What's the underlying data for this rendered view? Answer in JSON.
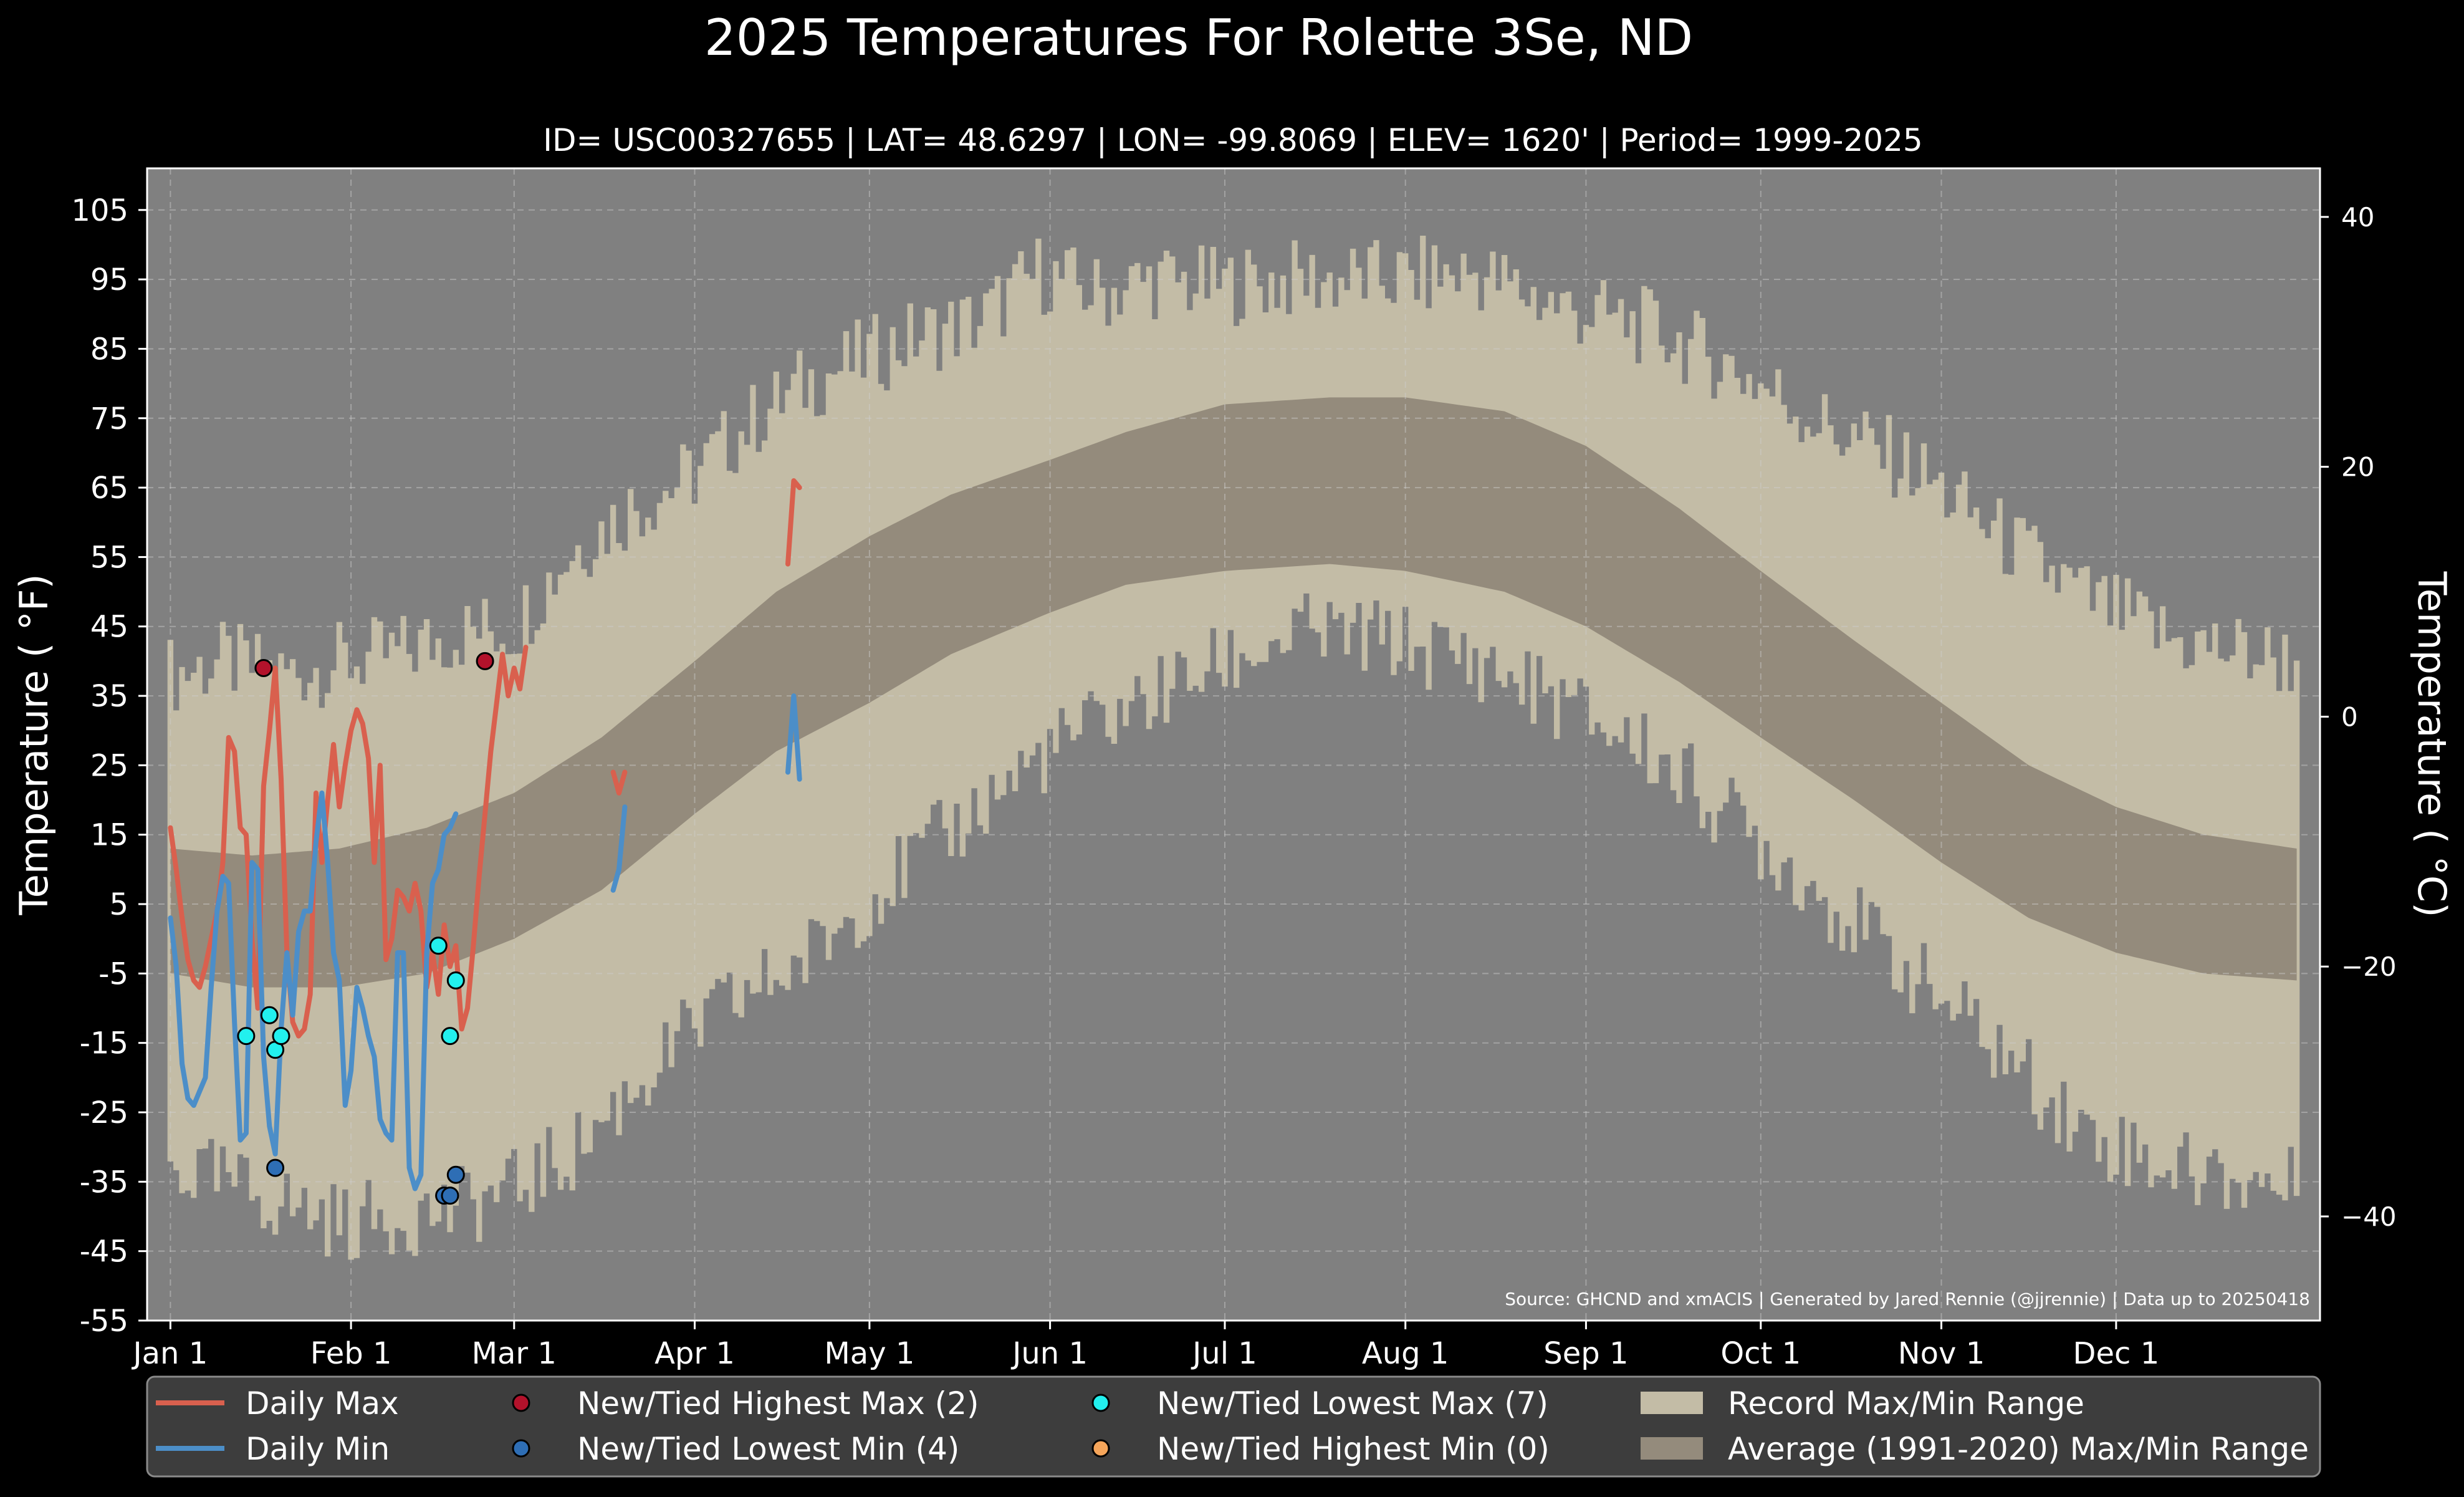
{
  "chart_data": {
    "type": "area",
    "title": "2025 Temperatures For Rolette 3Se, ND",
    "subtitle": "ID= USC00327655 | LAT= 48.6297 | LON= -99.8069 | ELEV= 1620' | Period= 1999-2025",
    "ylabel": "Temperature ( $^\\circ$F)",
    "ylabel_display": "Temperature ( °F)",
    "y2label_display": "Temperature ( °C)",
    "source": "Source: GHCND and xmACIS | Generated by Jared Rennie (@jjrennie) | Data up to 20250418",
    "ylim": [
      -55,
      111
    ],
    "y_ticks": [
      105,
      95,
      85,
      75,
      65,
      55,
      45,
      35,
      25,
      15,
      5,
      -5,
      -15,
      -25,
      -35,
      -45,
      -55
    ],
    "y_tick_labels": [
      "105",
      "95",
      "85",
      "75",
      "65",
      "55",
      "45",
      "35",
      "25",
      "15",
      "5",
      "-5",
      "-15",
      "-25",
      "-35",
      "-45",
      "-55"
    ],
    "y2_ticks": [
      40,
      20,
      0,
      -20,
      -40
    ],
    "y2_tick_labels": [
      "40",
      "20",
      "0",
      "−20",
      "−40"
    ],
    "x_ticks": [
      1,
      32,
      60,
      91,
      121,
      152,
      182,
      213,
      244,
      274,
      305,
      335
    ],
    "x_tick_labels": [
      "Jan 1",
      "Feb 1",
      "Mar 1",
      "Apr 1",
      "May 1",
      "Jun 1",
      "Jul 1",
      "Aug 1",
      "Sep 1",
      "Oct 1",
      "Nov 1",
      "Dec 1"
    ],
    "xlim": [
      -3,
      370
    ],
    "grid": true,
    "legend_position": "bottom",
    "record_range_keys": [
      {
        "day": 1,
        "max": 38,
        "min": -33
      },
      {
        "day": 10,
        "max": 40,
        "min": -35
      },
      {
        "day": 20,
        "max": 38,
        "min": -38
      },
      {
        "day": 31,
        "max": 40,
        "min": -41
      },
      {
        "day": 40,
        "max": 41,
        "min": -40
      },
      {
        "day": 50,
        "max": 44,
        "min": -39
      },
      {
        "day": 60,
        "max": 45,
        "min": -36
      },
      {
        "day": 70,
        "max": 56,
        "min": -31
      },
      {
        "day": 80,
        "max": 62,
        "min": -22
      },
      {
        "day": 91,
        "max": 67,
        "min": -13
      },
      {
        "day": 100,
        "max": 74,
        "min": -8
      },
      {
        "day": 110,
        "max": 80,
        "min": -3
      },
      {
        "day": 121,
        "max": 84,
        "min": 6
      },
      {
        "day": 130,
        "max": 87,
        "min": 12
      },
      {
        "day": 140,
        "max": 89,
        "min": 19
      },
      {
        "day": 150,
        "max": 96,
        "min": 26
      },
      {
        "day": 160,
        "max": 93,
        "min": 31
      },
      {
        "day": 170,
        "max": 95,
        "min": 35
      },
      {
        "day": 180,
        "max": 94,
        "min": 39
      },
      {
        "day": 195,
        "max": 95,
        "min": 44
      },
      {
        "day": 210,
        "max": 95,
        "min": 43
      },
      {
        "day": 225,
        "max": 96,
        "min": 40
      },
      {
        "day": 240,
        "max": 91,
        "min": 34
      },
      {
        "day": 255,
        "max": 88,
        "min": 27
      },
      {
        "day": 270,
        "max": 82,
        "min": 17
      },
      {
        "day": 285,
        "max": 74,
        "min": 6
      },
      {
        "day": 300,
        "max": 68,
        "min": -5
      },
      {
        "day": 315,
        "max": 58,
        "min": -16
      },
      {
        "day": 330,
        "max": 49,
        "min": -28
      },
      {
        "day": 345,
        "max": 43,
        "min": -33
      },
      {
        "day": 366,
        "max": 40,
        "min": -36
      }
    ],
    "average_range_keys": [
      {
        "day": 1,
        "max": 13,
        "min": -5
      },
      {
        "day": 15,
        "max": 12,
        "min": -7
      },
      {
        "day": 30,
        "max": 13,
        "min": -7
      },
      {
        "day": 45,
        "max": 16,
        "min": -5
      },
      {
        "day": 60,
        "max": 21,
        "min": 0
      },
      {
        "day": 75,
        "max": 29,
        "min": 7
      },
      {
        "day": 91,
        "max": 40,
        "min": 18
      },
      {
        "day": 105,
        "max": 50,
        "min": 27
      },
      {
        "day": 121,
        "max": 58,
        "min": 34
      },
      {
        "day": 135,
        "max": 64,
        "min": 41
      },
      {
        "day": 152,
        "max": 69,
        "min": 47
      },
      {
        "day": 165,
        "max": 73,
        "min": 51
      },
      {
        "day": 182,
        "max": 77,
        "min": 53
      },
      {
        "day": 200,
        "max": 78,
        "min": 54
      },
      {
        "day": 213,
        "max": 78,
        "min": 53
      },
      {
        "day": 230,
        "max": 76,
        "min": 50
      },
      {
        "day": 244,
        "max": 71,
        "min": 45
      },
      {
        "day": 260,
        "max": 62,
        "min": 37
      },
      {
        "day": 274,
        "max": 53,
        "min": 29
      },
      {
        "day": 290,
        "max": 43,
        "min": 20
      },
      {
        "day": 305,
        "max": 34,
        "min": 11
      },
      {
        "day": 320,
        "max": 25,
        "min": 3
      },
      {
        "day": 335,
        "max": 19,
        "min": -2
      },
      {
        "day": 350,
        "max": 15,
        "min": -5
      },
      {
        "day": 366,
        "max": 13,
        "min": -6
      }
    ],
    "series": [
      {
        "name": "Daily Max",
        "color": "#d9604e",
        "segments": [
          [
            [
              1,
              16
            ],
            [
              2,
              10
            ],
            [
              3,
              3
            ],
            [
              4,
              -3
            ],
            [
              5,
              -6
            ],
            [
              6,
              -7
            ],
            [
              7,
              -4
            ],
            [
              8,
              0
            ],
            [
              9,
              4
            ],
            [
              10,
              11
            ],
            [
              11,
              29
            ],
            [
              12,
              27
            ],
            [
              13,
              16
            ],
            [
              14,
              15
            ],
            [
              15,
              0
            ],
            [
              16,
              -10
            ],
            [
              17,
              22
            ],
            [
              18,
              30
            ],
            [
              19,
              39
            ],
            [
              20,
              23
            ],
            [
              21,
              -2
            ],
            [
              22,
              -12
            ],
            [
              23,
              -14
            ],
            [
              24,
              -13
            ],
            [
              25,
              -8
            ],
            [
              26,
              21
            ],
            [
              27,
              11
            ],
            [
              28,
              20
            ],
            [
              29,
              28
            ],
            [
              30,
              19
            ],
            [
              31,
              25
            ],
            [
              32,
              30
            ],
            [
              33,
              33
            ],
            [
              34,
              31
            ],
            [
              35,
              26
            ],
            [
              36,
              11
            ],
            [
              37,
              25
            ],
            [
              38,
              -3
            ],
            [
              39,
              0
            ],
            [
              40,
              7
            ],
            [
              41,
              6
            ],
            [
              42,
              4
            ],
            [
              43,
              8
            ],
            [
              44,
              4
            ],
            [
              45,
              -7
            ],
            [
              46,
              -2
            ],
            [
              47,
              -8
            ],
            [
              48,
              2
            ],
            [
              49,
              -4
            ],
            [
              50,
              -1
            ],
            [
              51,
              -13
            ],
            [
              52,
              -10
            ],
            [
              53,
              -1
            ],
            [
              54,
              9
            ],
            [
              55,
              18
            ],
            [
              56,
              27
            ],
            [
              57,
              34
            ],
            [
              58,
              41
            ],
            [
              59,
              35
            ],
            [
              60,
              39
            ],
            [
              61,
              36
            ],
            [
              62,
              42
            ]
          ],
          [
            [
              77,
              24
            ],
            [
              78,
              21
            ],
            [
              79,
              24
            ]
          ],
          [
            [
              107,
              54
            ],
            [
              108,
              66
            ],
            [
              109,
              65
            ]
          ]
        ]
      },
      {
        "name": "Daily Min",
        "color": "#4c8ec8",
        "segments": [
          [
            [
              1,
              3
            ],
            [
              2,
              -4
            ],
            [
              3,
              -18
            ],
            [
              4,
              -23
            ],
            [
              5,
              -24
            ],
            [
              6,
              -22
            ],
            [
              7,
              -20
            ],
            [
              8,
              -7
            ],
            [
              9,
              4
            ],
            [
              10,
              9
            ],
            [
              11,
              8
            ],
            [
              12,
              -12
            ],
            [
              13,
              -29
            ],
            [
              14,
              -28
            ],
            [
              15,
              11
            ],
            [
              16,
              10
            ],
            [
              17,
              -17
            ],
            [
              18,
              -27
            ],
            [
              19,
              -31
            ],
            [
              20,
              -13
            ],
            [
              21,
              -2
            ],
            [
              22,
              -11
            ],
            [
              23,
              1
            ],
            [
              24,
              4
            ],
            [
              25,
              4
            ],
            [
              26,
              14
            ],
            [
              27,
              21
            ],
            [
              28,
              11
            ],
            [
              29,
              -2
            ],
            [
              30,
              -6
            ],
            [
              31,
              -24
            ],
            [
              32,
              -19
            ],
            [
              33,
              -7
            ],
            [
              34,
              -10
            ],
            [
              35,
              -14
            ],
            [
              36,
              -17
            ],
            [
              37,
              -26
            ],
            [
              38,
              -28
            ],
            [
              39,
              -29
            ],
            [
              40,
              -2
            ],
            [
              41,
              -2
            ],
            [
              42,
              -33
            ],
            [
              43,
              -36
            ],
            [
              44,
              -34
            ],
            [
              45,
              -2
            ],
            [
              46,
              8
            ],
            [
              47,
              10
            ],
            [
              48,
              15
            ],
            [
              49,
              16
            ],
            [
              50,
              18
            ]
          ],
          [
            [
              77,
              7
            ],
            [
              78,
              10
            ],
            [
              79,
              19
            ]
          ],
          [
            [
              107,
              24
            ],
            [
              108,
              35
            ],
            [
              109,
              23
            ]
          ]
        ]
      }
    ],
    "markers": [
      {
        "name": "New/Tied Highest Max (2)",
        "color": "#b3122b",
        "points": [
          [
            17,
            39
          ],
          [
            55,
            40
          ]
        ]
      },
      {
        "name": "New/Tied Lowest Min (4)",
        "color": "#2e6eb5",
        "points": [
          [
            19,
            -33
          ],
          [
            48,
            -37
          ],
          [
            49,
            -37
          ],
          [
            50,
            -34
          ]
        ]
      },
      {
        "name": "New/Tied Lowest Max (7)",
        "color": "#22f0ee",
        "points": [
          [
            14,
            -14
          ],
          [
            18,
            -11
          ],
          [
            19,
            -16
          ],
          [
            20,
            -14
          ],
          [
            47,
            -1
          ],
          [
            49,
            -14
          ],
          [
            50,
            -6
          ]
        ]
      },
      {
        "name": "New/Tied Highest Min (0)",
        "color": "#f5a55a",
        "points": []
      }
    ],
    "bands": [
      {
        "name": "Record Max/Min Range",
        "color": "#c3bca6"
      },
      {
        "name": "Average (1991-2020) Max/Min Range",
        "color": "#948b7c"
      }
    ],
    "background_color": "#808080"
  },
  "legend": {
    "daily_max": "Daily Max",
    "daily_min": "Daily Min",
    "highest_max": "New/Tied Highest Max (2)",
    "lowest_min": "New/Tied Lowest Min (4)",
    "lowest_max": "New/Tied Lowest Max (7)",
    "highest_min": "New/Tied Highest Min (0)",
    "record_range": "Record Max/Min Range",
    "average_range": "Average (1991-2020) Max/Min Range"
  }
}
